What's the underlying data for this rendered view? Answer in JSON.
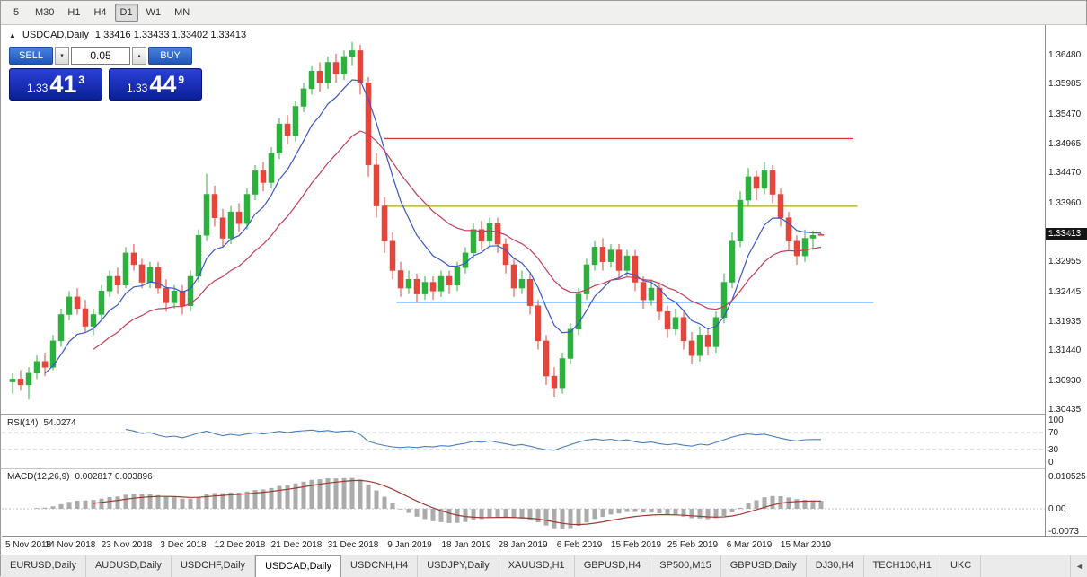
{
  "toolbar": {
    "timeframes": [
      "5",
      "M30",
      "H1",
      "H4",
      "D1",
      "W1",
      "MN"
    ],
    "active": "D1"
  },
  "icons": {
    "chart_marker": "▲",
    "spin_up": "▴",
    "spin_down": "▾",
    "tab_scroll_left": "◄"
  },
  "one_click": {
    "sell_label": "SELL",
    "buy_label": "BUY",
    "volume": "0.05",
    "sell_price": {
      "prefix": "1.33",
      "big": "41",
      "sup": "3"
    },
    "buy_price": {
      "prefix": "1.33",
      "big": "44",
      "sup": "9"
    }
  },
  "chart_data": {
    "type": "candlestick",
    "title": "USDCAD,Daily",
    "ohlc_text": "1.33416 1.33433 1.33402 1.33413",
    "current_price": "1.33413",
    "y_ticks": [
      "1.36480",
      "1.35985",
      "1.35470",
      "1.34965",
      "1.34470",
      "1.33960",
      "1.33455",
      "1.32955",
      "1.32445",
      "1.31935",
      "1.31440",
      "1.30930",
      "1.30435"
    ],
    "x_ticks": [
      {
        "label": "5 Nov 2018",
        "index": 0
      },
      {
        "label": "14 Nov 2018",
        "index": 7
      },
      {
        "label": "23 Nov 2018",
        "index": 14
      },
      {
        "label": "3 Dec 2018",
        "index": 21
      },
      {
        "label": "12 Dec 2018",
        "index": 28
      },
      {
        "label": "21 Dec 2018",
        "index": 35
      },
      {
        "label": "31 Dec 2018",
        "index": 42
      },
      {
        "label": "9 Jan 2019",
        "index": 49
      },
      {
        "label": "18 Jan 2019",
        "index": 56
      },
      {
        "label": "28 Jan 2019",
        "index": 63
      },
      {
        "label": "6 Feb 2019",
        "index": 70
      },
      {
        "label": "15 Feb 2019",
        "index": 77
      },
      {
        "label": "25 Feb 2019",
        "index": 84
      },
      {
        "label": "6 Mar 2019",
        "index": 91
      },
      {
        "label": "15 Mar 2019",
        "index": 98
      }
    ],
    "candles": [
      [
        1.309,
        1.3105,
        1.307,
        1.3095
      ],
      [
        1.3095,
        1.311,
        1.3075,
        1.3085
      ],
      [
        1.3085,
        1.3115,
        1.306,
        1.3105
      ],
      [
        1.3105,
        1.3135,
        1.3095,
        1.3125
      ],
      [
        1.3125,
        1.314,
        1.31,
        1.3115
      ],
      [
        1.3115,
        1.317,
        1.311,
        1.316
      ],
      [
        1.316,
        1.3215,
        1.315,
        1.3205
      ],
      [
        1.3205,
        1.3245,
        1.3195,
        1.3235
      ],
      [
        1.3235,
        1.325,
        1.3205,
        1.3215
      ],
      [
        1.3215,
        1.323,
        1.3175,
        1.3185
      ],
      [
        1.3185,
        1.3215,
        1.317,
        1.3205
      ],
      [
        1.3205,
        1.3255,
        1.3195,
        1.3245
      ],
      [
        1.3245,
        1.328,
        1.3235,
        1.327
      ],
      [
        1.327,
        1.3285,
        1.324,
        1.3255
      ],
      [
        1.3255,
        1.332,
        1.325,
        1.331
      ],
      [
        1.331,
        1.3325,
        1.328,
        1.329
      ],
      [
        1.329,
        1.33,
        1.325,
        1.326
      ],
      [
        1.326,
        1.3295,
        1.325,
        1.3285
      ],
      [
        1.3285,
        1.3295,
        1.324,
        1.325
      ],
      [
        1.325,
        1.3265,
        1.321,
        1.3225
      ],
      [
        1.3225,
        1.3255,
        1.3215,
        1.3245
      ],
      [
        1.3245,
        1.3255,
        1.3205,
        1.322
      ],
      [
        1.322,
        1.328,
        1.321,
        1.327
      ],
      [
        1.327,
        1.335,
        1.326,
        1.334
      ],
      [
        1.334,
        1.3445,
        1.333,
        1.341
      ],
      [
        1.341,
        1.3425,
        1.3355,
        1.337
      ],
      [
        1.337,
        1.3385,
        1.332,
        1.3335
      ],
      [
        1.3335,
        1.339,
        1.3325,
        1.338
      ],
      [
        1.338,
        1.3395,
        1.3345,
        1.336
      ],
      [
        1.336,
        1.342,
        1.335,
        1.341
      ],
      [
        1.341,
        1.346,
        1.34,
        1.345
      ],
      [
        1.345,
        1.3465,
        1.3415,
        1.343
      ],
      [
        1.343,
        1.349,
        1.342,
        1.348
      ],
      [
        1.348,
        1.354,
        1.347,
        1.353
      ],
      [
        1.353,
        1.3545,
        1.3495,
        1.351
      ],
      [
        1.351,
        1.357,
        1.35,
        1.356
      ],
      [
        1.356,
        1.36,
        1.355,
        1.359
      ],
      [
        1.359,
        1.363,
        1.358,
        1.362
      ],
      [
        1.362,
        1.3635,
        1.3585,
        1.36
      ],
      [
        1.36,
        1.3645,
        1.359,
        1.3635
      ],
      [
        1.3635,
        1.365,
        1.36,
        1.3615
      ],
      [
        1.3615,
        1.3655,
        1.3605,
        1.3645
      ],
      [
        1.3645,
        1.367,
        1.363,
        1.3655
      ],
      [
        1.3655,
        1.3665,
        1.358,
        1.36
      ],
      [
        1.36,
        1.361,
        1.344,
        1.346
      ],
      [
        1.346,
        1.348,
        1.337,
        1.339
      ],
      [
        1.339,
        1.3405,
        1.331,
        1.333
      ],
      [
        1.333,
        1.3345,
        1.3265,
        1.328
      ],
      [
        1.328,
        1.3295,
        1.3235,
        1.325
      ],
      [
        1.325,
        1.328,
        1.324,
        1.3265
      ],
      [
        1.3265,
        1.3275,
        1.3225,
        1.324
      ],
      [
        1.324,
        1.327,
        1.323,
        1.326
      ],
      [
        1.326,
        1.327,
        1.323,
        1.3245
      ],
      [
        1.3245,
        1.328,
        1.3235,
        1.327
      ],
      [
        1.327,
        1.328,
        1.324,
        1.3255
      ],
      [
        1.3255,
        1.3295,
        1.3245,
        1.3285
      ],
      [
        1.3285,
        1.332,
        1.3275,
        1.331
      ],
      [
        1.331,
        1.336,
        1.33,
        1.335
      ],
      [
        1.335,
        1.3365,
        1.3315,
        1.333
      ],
      [
        1.333,
        1.337,
        1.332,
        1.336
      ],
      [
        1.336,
        1.337,
        1.331,
        1.3325
      ],
      [
        1.3325,
        1.3335,
        1.3275,
        1.329
      ],
      [
        1.329,
        1.33,
        1.3235,
        1.325
      ],
      [
        1.325,
        1.328,
        1.324,
        1.3265
      ],
      [
        1.3265,
        1.3275,
        1.3205,
        1.322
      ],
      [
        1.322,
        1.323,
        1.3145,
        1.316
      ],
      [
        1.316,
        1.317,
        1.3085,
        1.31
      ],
      [
        1.31,
        1.3115,
        1.3065,
        1.308
      ],
      [
        1.308,
        1.314,
        1.307,
        1.313
      ],
      [
        1.313,
        1.319,
        1.312,
        1.318
      ],
      [
        1.318,
        1.325,
        1.317,
        1.324
      ],
      [
        1.324,
        1.33,
        1.323,
        1.329
      ],
      [
        1.329,
        1.333,
        1.328,
        1.332
      ],
      [
        1.332,
        1.3335,
        1.328,
        1.3295
      ],
      [
        1.3295,
        1.3325,
        1.3285,
        1.3315
      ],
      [
        1.3315,
        1.3325,
        1.3265,
        1.328
      ],
      [
        1.328,
        1.3315,
        1.327,
        1.3305
      ],
      [
        1.3305,
        1.3315,
        1.3245,
        1.326
      ],
      [
        1.326,
        1.327,
        1.3215,
        1.323
      ],
      [
        1.323,
        1.3265,
        1.322,
        1.325
      ],
      [
        1.325,
        1.326,
        1.3195,
        1.321
      ],
      [
        1.321,
        1.322,
        1.3165,
        1.318
      ],
      [
        1.318,
        1.3215,
        1.317,
        1.32
      ],
      [
        1.32,
        1.321,
        1.3145,
        1.316
      ],
      [
        1.316,
        1.3175,
        1.312,
        1.3135
      ],
      [
        1.3135,
        1.3185,
        1.3125,
        1.317
      ],
      [
        1.317,
        1.318,
        1.3135,
        1.315
      ],
      [
        1.315,
        1.321,
        1.314,
        1.32
      ],
      [
        1.32,
        1.3275,
        1.319,
        1.326
      ],
      [
        1.326,
        1.3345,
        1.325,
        1.333
      ],
      [
        1.333,
        1.3415,
        1.332,
        1.34
      ],
      [
        1.34,
        1.3455,
        1.339,
        1.344
      ],
      [
        1.344,
        1.345,
        1.34,
        1.342
      ],
      [
        1.342,
        1.3465,
        1.341,
        1.345
      ],
      [
        1.345,
        1.346,
        1.3395,
        1.341
      ],
      [
        1.341,
        1.342,
        1.3355,
        1.337
      ],
      [
        1.337,
        1.338,
        1.3315,
        1.333
      ],
      [
        1.333,
        1.334,
        1.329,
        1.3305
      ],
      [
        1.3305,
        1.335,
        1.3295,
        1.3335
      ],
      [
        1.3335,
        1.3348,
        1.3315,
        1.334
      ],
      [
        1.33416,
        1.33433,
        1.33402,
        1.33413
      ]
    ],
    "hlines": [
      {
        "color": "#d84040",
        "price": 1.3505,
        "i1": 46,
        "i2": 104,
        "width": 1.4
      },
      {
        "color": "#bdbd2e",
        "price": 1.339,
        "i1": 46,
        "i2": 104.5,
        "width": 2
      },
      {
        "color": "#4f8fd0",
        "price": 1.3226,
        "i1": 47.5,
        "i2": 106.5,
        "width": 1.6
      }
    ],
    "colors": {
      "bull": "#2cb03e",
      "bear": "#e5453b",
      "ma_fast": "#3a55c8",
      "ma_slow": "#c23f5a",
      "price_badge_bg": "#141414"
    }
  },
  "rsi_panel": {
    "name": "RSI(14)",
    "value": "54.0274",
    "ticks": [
      "100",
      "70",
      "30",
      "0"
    ],
    "levels": [
      70,
      30
    ],
    "line_color": "#4a7ebb"
  },
  "macd_panel": {
    "name": "MACD(12,26,9)",
    "value": "0.002817 0.003896",
    "ticks": [
      "0.010525",
      "0.00",
      "-0.0073"
    ],
    "signal_color": "#9c3b34",
    "hist_color": "#ababab"
  },
  "tabs": {
    "items": [
      "EURUSD,Daily",
      "AUDUSD,Daily",
      "USDCHF,Daily",
      "USDCAD,Daily",
      "USDCNH,H4",
      "USDJPY,Daily",
      "XAUUSD,H1",
      "GBPUSD,H4",
      "SP500,M15",
      "GBPUSD,Daily",
      "DJ30,H4",
      "TECH100,H1",
      "UKC"
    ],
    "active": "USDCAD,Daily"
  }
}
